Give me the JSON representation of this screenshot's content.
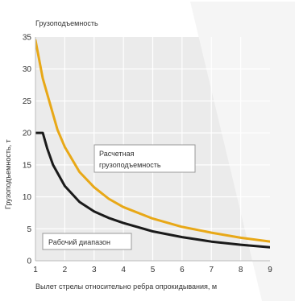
{
  "chart_data": {
    "type": "line",
    "title": "Грузоподъемность",
    "xlabel": "Вылет стрелы относительно ребра опрокидывания, м",
    "ylabel": "Грузоподъемность, т",
    "xlim": [
      1,
      9
    ],
    "ylim": [
      0,
      35
    ],
    "x_ticks": [
      1,
      2,
      3,
      4,
      5,
      6,
      7,
      8,
      9
    ],
    "y_ticks": [
      0,
      5,
      10,
      15,
      20,
      25,
      30,
      35
    ],
    "grid": true,
    "series": [
      {
        "name": "Расчетная грузоподъемность",
        "color": "#e8a817",
        "x": [
          1,
          1.25,
          1.5,
          1.75,
          2,
          2.5,
          3,
          3.5,
          4,
          5,
          6,
          7,
          8,
          9
        ],
        "y": [
          34.5,
          28.5,
          24.5,
          20.5,
          17.8,
          13.9,
          11.5,
          9.7,
          8.4,
          6.6,
          5.3,
          4.4,
          3.6,
          3
        ]
      },
      {
        "name": "Рабочий диапазон",
        "color": "#1a1a1a",
        "x": [
          1,
          1.1,
          1.25,
          1.4,
          1.6,
          2,
          2.5,
          3,
          3.5,
          4,
          5,
          6,
          7,
          8,
          9
        ],
        "y": [
          20,
          20,
          20,
          17.6,
          15,
          11.7,
          9.2,
          7.7,
          6.7,
          5.9,
          4.6,
          3.7,
          3,
          2.5,
          2.1
        ]
      }
    ],
    "annotations": [
      {
        "text": "Расчетная грузоподъемность",
        "x": 4.5,
        "y": 17
      },
      {
        "text": "Рабочий диапазон",
        "x": 1.8,
        "y": 2.3
      }
    ],
    "colors": {
      "plot_background": "#ebebeb",
      "grid": "#ffffff",
      "hatched_region": "#f5f5f5"
    }
  }
}
